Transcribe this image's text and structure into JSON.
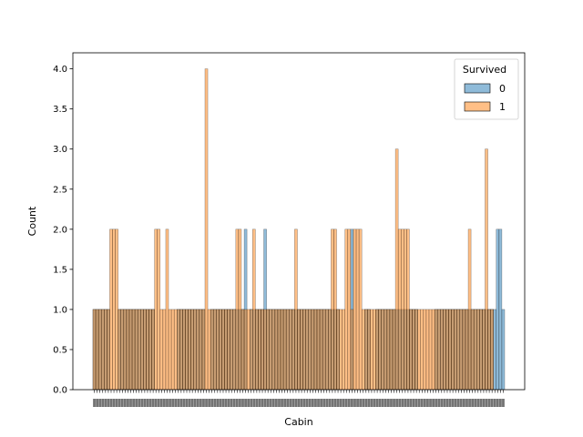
{
  "chart_data": {
    "type": "bar",
    "title": "",
    "xlabel": "Cabin",
    "ylabel": "Count",
    "ylim": [
      0,
      4.2
    ],
    "yticks": [
      0.0,
      0.5,
      1.0,
      1.5,
      2.0,
      2.5,
      3.0,
      3.5,
      4.0
    ],
    "ytick_labels": [
      "0.0",
      "0.5",
      "1.0",
      "1.5",
      "2.0",
      "2.5",
      "3.0",
      "3.5",
      "4.0"
    ],
    "grid": false,
    "legend": {
      "title": "Survived",
      "placement": "top-right",
      "entries": [
        {
          "label": "0",
          "color": "#1f77b4"
        },
        {
          "label": "1",
          "color": "#ff7f0e"
        }
      ]
    },
    "xtick_labels_note": "~147 overlapping cabin codes, illegible",
    "series": [
      {
        "name": "0",
        "color": "#1f77b4",
        "values": [
          1,
          1,
          1,
          1,
          1,
          1,
          0,
          0,
          0,
          1,
          1,
          1,
          1,
          1,
          1,
          1,
          1,
          1,
          1,
          1,
          1,
          1,
          0,
          0,
          0,
          0,
          0,
          0,
          0,
          0,
          1,
          1,
          1,
          1,
          1,
          1,
          1,
          1,
          1,
          1,
          0,
          0,
          1,
          1,
          1,
          1,
          1,
          1,
          1,
          1,
          1,
          1,
          1,
          1,
          2,
          0,
          1,
          1,
          1,
          1,
          1,
          2,
          1,
          1,
          1,
          1,
          1,
          1,
          1,
          1,
          1,
          1,
          1,
          1,
          1,
          1,
          1,
          1,
          1,
          1,
          1,
          1,
          1,
          1,
          1,
          1,
          1,
          1,
          0,
          0,
          0,
          0,
          2,
          0,
          0,
          0,
          0,
          1,
          1,
          0,
          0,
          1,
          1,
          1,
          1,
          1,
          1,
          1,
          1,
          1,
          1,
          1,
          1,
          1,
          1,
          1,
          0,
          0,
          0,
          0,
          0,
          0,
          1,
          1,
          1,
          1,
          1,
          1,
          1,
          1,
          1,
          1,
          1,
          1,
          1,
          1,
          1,
          1,
          1,
          1,
          1,
          1,
          1,
          1,
          2,
          2,
          1
        ]
      },
      {
        "name": "1",
        "color": "#ff7f0e",
        "values": [
          1,
          1,
          1,
          1,
          1,
          1,
          2,
          2,
          2,
          1,
          1,
          1,
          1,
          1,
          1,
          1,
          1,
          1,
          1,
          1,
          1,
          1,
          2,
          2,
          1,
          1,
          2,
          1,
          1,
          1,
          1,
          1,
          1,
          1,
          1,
          1,
          1,
          1,
          1,
          1,
          4,
          1,
          1,
          1,
          1,
          1,
          1,
          1,
          1,
          1,
          1,
          2,
          2,
          1,
          1,
          1,
          1,
          2,
          1,
          1,
          1,
          1,
          1,
          1,
          1,
          1,
          1,
          1,
          1,
          1,
          1,
          1,
          2,
          1,
          1,
          1,
          1,
          1,
          1,
          1,
          1,
          1,
          1,
          1,
          1,
          2,
          2,
          1,
          1,
          1,
          2,
          2,
          1,
          2,
          2,
          2,
          1,
          1,
          1,
          1,
          1,
          1,
          1,
          1,
          1,
          1,
          1,
          1,
          3,
          2,
          2,
          2,
          2,
          1,
          1,
          1,
          1,
          1,
          1,
          1,
          1,
          1,
          1,
          1,
          1,
          1,
          1,
          1,
          1,
          1,
          1,
          1,
          1,
          1,
          2,
          1,
          1,
          1,
          1,
          1,
          3,
          1,
          1,
          0,
          0,
          0,
          0
        ]
      }
    ]
  }
}
